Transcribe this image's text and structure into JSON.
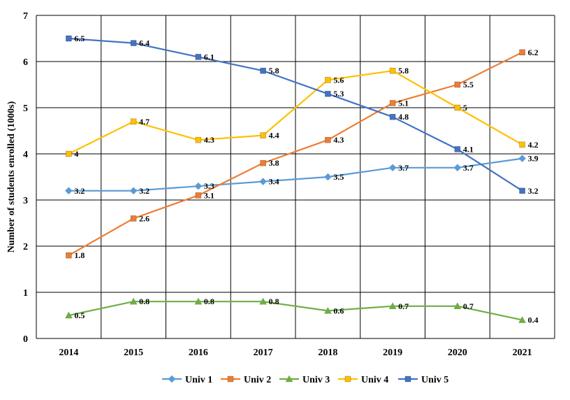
{
  "chart_data": {
    "type": "line",
    "title": "",
    "xlabel": "",
    "ylabel": "Number of students enrolled (1000s)",
    "categories": [
      "2014",
      "2015",
      "2016",
      "2017",
      "2018",
      "2019",
      "2020",
      "2021"
    ],
    "ylim": [
      0,
      7
    ],
    "yticks": [
      "0",
      "1",
      "2",
      "3",
      "4",
      "5",
      "6",
      "7"
    ],
    "grid": true,
    "legend_position": "bottom",
    "series": [
      {
        "name": "Univ 1",
        "color": "#5B9BD5",
        "marker": "diamond",
        "values": [
          3.2,
          3.2,
          3.3,
          3.4,
          3.5,
          3.7,
          3.7,
          3.9
        ],
        "labels": [
          "3.2",
          "3.2",
          "3.3",
          "3.4",
          "3.5",
          "3.7",
          "3.7",
          "3.9"
        ]
      },
      {
        "name": "Univ 2",
        "color": "#ED7D31",
        "marker": "square",
        "values": [
          1.8,
          2.6,
          3.1,
          3.8,
          4.3,
          5.1,
          5.5,
          6.2
        ],
        "labels": [
          "1.8",
          "2.6",
          "3.1",
          "3.8",
          "4.3",
          "5.1",
          "5.5",
          "6.2"
        ]
      },
      {
        "name": "Univ 3",
        "color": "#70AD47",
        "marker": "triangle",
        "values": [
          0.5,
          0.8,
          0.8,
          0.8,
          0.6,
          0.7,
          0.7,
          0.4
        ],
        "labels": [
          "0.5",
          "0.8",
          "0.8",
          "0.8",
          "0.6",
          "0.7",
          "0.7",
          "0.4"
        ]
      },
      {
        "name": "Univ 4",
        "color": "#FFC000",
        "marker": "square",
        "values": [
          4,
          4.7,
          4.3,
          4.4,
          5.6,
          5.8,
          5,
          4.2
        ],
        "labels": [
          "4",
          "4.7",
          "4.3",
          "4.4",
          "5.6",
          "5.8",
          "5",
          "4.2"
        ]
      },
      {
        "name": "Univ 5",
        "color": "#4472C4",
        "marker": "square",
        "values": [
          6.5,
          6.4,
          6.1,
          5.8,
          5.3,
          4.8,
          4.1,
          3.2
        ],
        "labels": [
          "6.5",
          "6.4",
          "6.1",
          "5.8",
          "5.3",
          "4.8",
          "4.1",
          "3.2"
        ]
      }
    ]
  }
}
